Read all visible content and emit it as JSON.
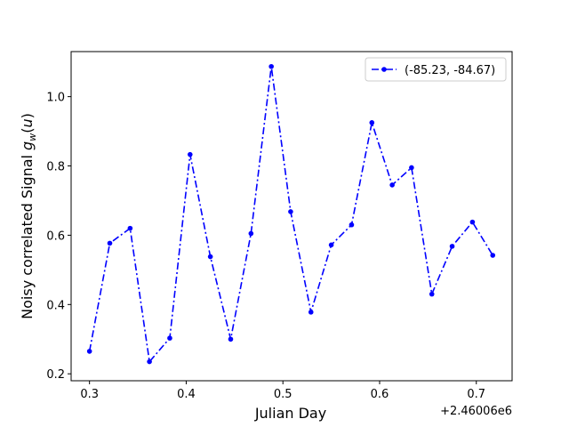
{
  "chart_data": {
    "type": "line",
    "title": "",
    "xlabel": "Julian Day",
    "ylabel": "Noisy correlated Signal g_w(u)",
    "x_offset_label": "+2.46006e6",
    "xlim": [
      0.281,
      0.737
    ],
    "ylim": [
      0.18,
      1.13
    ],
    "x_ticks": [
      0.3,
      0.4,
      0.5,
      0.6,
      0.7
    ],
    "x_tick_labels": [
      "0.3",
      "0.4",
      "0.5",
      "0.6",
      "0.7"
    ],
    "y_ticks": [
      0.2,
      0.4,
      0.6,
      0.8,
      1.0
    ],
    "y_tick_labels": [
      "0.2",
      "0.4",
      "0.6",
      "0.8",
      "1.0"
    ],
    "grid": false,
    "legend_position": "top-right",
    "series": [
      {
        "name": "(-85.23, -84.67)",
        "color": "#0000ff",
        "line_style": "dash-dot",
        "marker": "circle",
        "x": [
          0.3,
          0.321,
          0.342,
          0.362,
          0.383,
          0.404,
          0.425,
          0.446,
          0.467,
          0.488,
          0.508,
          0.529,
          0.55,
          0.571,
          0.592,
          0.613,
          0.633,
          0.654,
          0.675,
          0.696,
          0.717
        ],
        "y": [
          0.265,
          0.577,
          0.62,
          0.235,
          0.303,
          0.833,
          0.538,
          0.3,
          0.605,
          1.087,
          0.668,
          0.378,
          0.572,
          0.63,
          0.925,
          0.745,
          0.795,
          0.43,
          0.568,
          0.638,
          0.542
        ]
      }
    ]
  }
}
